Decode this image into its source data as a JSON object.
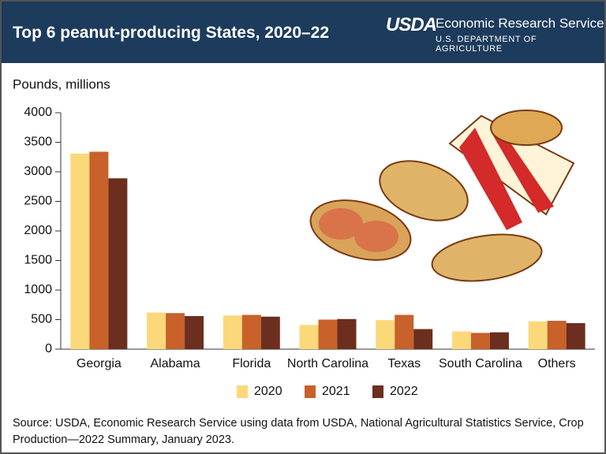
{
  "chart_data": {
    "type": "bar",
    "title": "Top 6 peanut-producing States, 2020–22",
    "logo": "USDA",
    "agency": "Economic Research Service",
    "department": "U.S. DEPARTMENT OF AGRICULTURE",
    "y_axis_label": "Pounds, millions",
    "categories": [
      "Georgia",
      "Alabama",
      "Florida",
      "North Carolina",
      "Texas",
      "South Carolina",
      "Others"
    ],
    "series": [
      {
        "name": "2020",
        "color": "#fbd97a",
        "values": [
          3310,
          620,
          570,
          410,
          490,
          300,
          470
        ]
      },
      {
        "name": "2021",
        "color": "#c8612a",
        "values": [
          3340,
          610,
          580,
          500,
          580,
          275,
          480
        ]
      },
      {
        "name": "2022",
        "color": "#6b2e1f",
        "values": [
          2890,
          560,
          550,
          510,
          340,
          285,
          440
        ]
      }
    ],
    "ylim": [
      0,
      4000
    ],
    "yticks": [
      0,
      500,
      1000,
      1500,
      2000,
      2500,
      3000,
      3500,
      4000
    ],
    "grid": false,
    "legend": "bottom",
    "source": "Source: USDA, Economic Research Service using data from USDA, National Agricultural Statistics Service, Crop Production—2022 Summary, January 2023."
  }
}
